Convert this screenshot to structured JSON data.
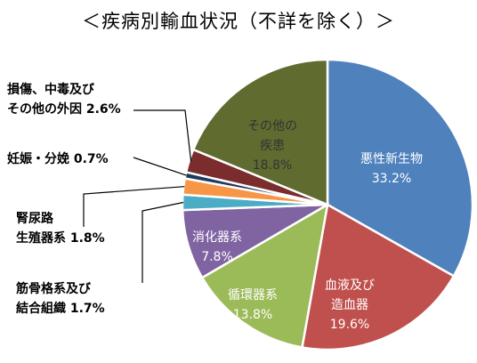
{
  "chart_data": {
    "type": "pie",
    "title": "＜疾病別輸血状況（不詳を除く）＞",
    "unit": "%",
    "series": [
      {
        "key": "malignant",
        "label_lines": [
          "悪性新生物"
        ],
        "value": 33.2,
        "value_text": "33.2%",
        "color": "#4f81bd",
        "label_color": "#ffffff",
        "inside": true
      },
      {
        "key": "blood",
        "label_lines": [
          "血液及び",
          "造血器"
        ],
        "value": 19.6,
        "value_text": "19.6%",
        "color": "#c0504d",
        "label_color": "#ffffff",
        "inside": true
      },
      {
        "key": "circulatory",
        "label_lines": [
          "循環器系"
        ],
        "value": 13.8,
        "value_text": "13.8%",
        "color": "#9bbb59",
        "label_color": "#ffffff",
        "inside": true
      },
      {
        "key": "digestive",
        "label_lines": [
          "消化器系"
        ],
        "value": 7.8,
        "value_text": "7.8%",
        "color": "#8064a2",
        "label_color": "#ffffff",
        "inside": true
      },
      {
        "key": "musculoskeletal",
        "label_lines": [
          "筋骨格系及び",
          "結合組織"
        ],
        "value": 1.7,
        "value_text": "1.7%",
        "color": "#4bacc6",
        "label_color": "#000000",
        "inside": false
      },
      {
        "key": "urogenital",
        "label_lines": [
          "腎尿路",
          "生殖器系"
        ],
        "value": 1.8,
        "value_text": "1.8%",
        "color": "#f79646",
        "label_color": "#000000",
        "inside": false
      },
      {
        "key": "pregnancy",
        "label_lines": [
          "妊娠・分娩"
        ],
        "value": 0.7,
        "value_text": "0.7%",
        "color": "#1f3a5f",
        "label_color": "#000000",
        "inside": false
      },
      {
        "key": "injury",
        "label_lines": [
          "損傷、中毒及び",
          "その他の外因"
        ],
        "value": 2.6,
        "value_text": "2.6%",
        "color": "#7b2c2c",
        "label_color": "#000000",
        "inside": false
      },
      {
        "key": "other",
        "label_lines": [
          "その他の",
          "疾患"
        ],
        "value": 18.8,
        "value_text": "18.8%",
        "color": "#5f6b2f",
        "label_color": "#333333",
        "inside": true
      }
    ]
  }
}
